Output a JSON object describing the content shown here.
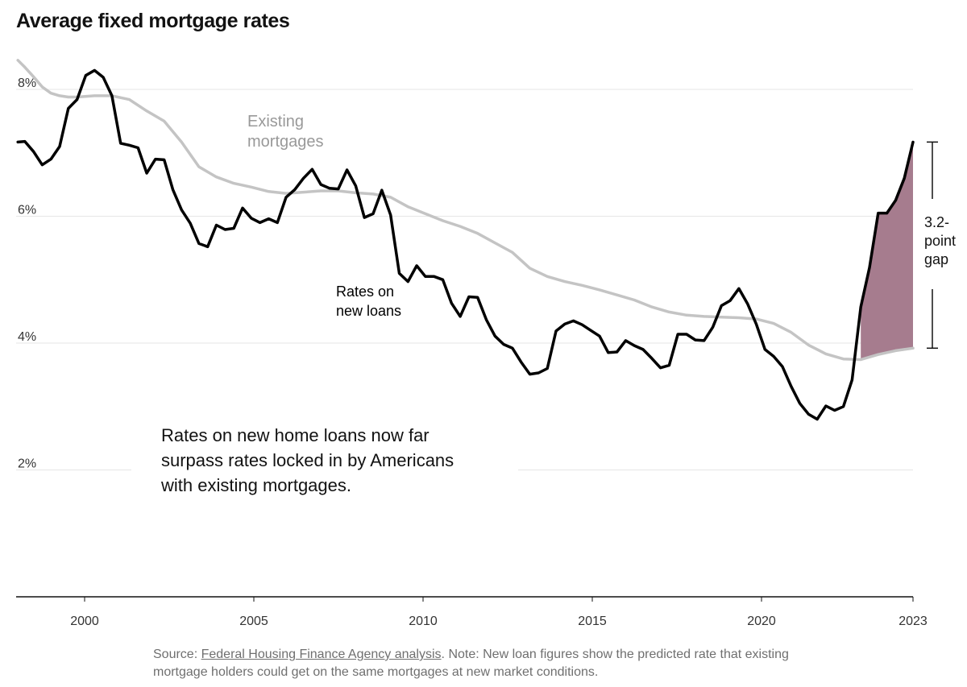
{
  "title": "Average fixed mortgage rates",
  "colors": {
    "new_loans": "#000000",
    "existing": "#c4c4c4",
    "gap_fill": "#a67c8e",
    "grid": "#e6e6e6",
    "axis": "#121212",
    "source_text": "#6f6f6f"
  },
  "source": {
    "prefix": "Source: ",
    "link_text": "Federal Housing Finance Agency analysis",
    "note": ". Note: New loan figures show the predicted rate that existing mortgage holders could get on the same mortgages at new market conditions."
  },
  "chart_data": {
    "type": "line",
    "title": "Average fixed mortgage rates",
    "xlabel": "",
    "ylabel": "",
    "xlim": [
      1999.25,
      2023.0
    ],
    "ylim": [
      0,
      8.5
    ],
    "x_ticks": [
      2000,
      2005,
      2010,
      2015,
      2020,
      2023
    ],
    "x_tick_labels": [
      "2000",
      "2005",
      "2010",
      "2015",
      "2020",
      "2023"
    ],
    "y_ticks": [
      2,
      4,
      6,
      8
    ],
    "y_tick_labels": [
      "2%",
      "4%",
      "6%",
      "8%"
    ],
    "grid": true,
    "legend": "direct labels on lines",
    "series": [
      {
        "name": "Rates on new loans",
        "label_lines": [
          "Rates on",
          "new loans"
        ],
        "points": [
          [
            1999.3,
            7.17
          ],
          [
            1999.5,
            7.18
          ],
          [
            1999.75,
            7.02
          ],
          [
            2000.0,
            6.81
          ],
          [
            2000.25,
            6.9
          ],
          [
            2000.5,
            7.1
          ],
          [
            2000.75,
            7.7
          ],
          [
            2001.0,
            7.84
          ],
          [
            2001.25,
            8.22
          ],
          [
            2001.5,
            8.3
          ],
          [
            2001.75,
            8.19
          ],
          [
            2002.0,
            7.9
          ],
          [
            2002.25,
            7.15
          ],
          [
            2002.5,
            7.12
          ],
          [
            2002.75,
            7.08
          ],
          [
            2003.0,
            6.68
          ],
          [
            2003.25,
            6.9
          ],
          [
            2003.5,
            6.89
          ],
          [
            2003.75,
            6.42
          ],
          [
            2004.0,
            6.1
          ],
          [
            2004.25,
            5.89
          ],
          [
            2004.5,
            5.57
          ],
          [
            2004.75,
            5.52
          ],
          [
            2005.0,
            5.86
          ],
          [
            2005.25,
            5.79
          ],
          [
            2005.5,
            5.81
          ],
          [
            2005.75,
            6.13
          ],
          [
            2006.0,
            5.97
          ],
          [
            2006.25,
            5.9
          ],
          [
            2006.5,
            5.96
          ],
          [
            2006.75,
            5.9
          ],
          [
            2007.0,
            6.3
          ],
          [
            2007.25,
            6.42
          ],
          [
            2007.5,
            6.6
          ],
          [
            2007.75,
            6.74
          ],
          [
            2008.0,
            6.5
          ],
          [
            2008.25,
            6.44
          ],
          [
            2008.5,
            6.43
          ],
          [
            2008.75,
            6.73
          ],
          [
            2009.0,
            6.48
          ],
          [
            2009.25,
            5.98
          ],
          [
            2009.5,
            6.04
          ],
          [
            2009.75,
            6.41
          ],
          [
            2010.0,
            6.02
          ],
          [
            2010.25,
            5.1
          ],
          [
            2010.5,
            4.97
          ],
          [
            2010.75,
            5.22
          ],
          [
            2011.0,
            5.05
          ],
          [
            2011.25,
            5.05
          ],
          [
            2011.5,
            5.0
          ],
          [
            2011.75,
            4.63
          ],
          [
            2012.0,
            4.42
          ],
          [
            2012.25,
            4.73
          ],
          [
            2012.5,
            4.72
          ],
          [
            2012.75,
            4.37
          ],
          [
            2013.0,
            4.11
          ],
          [
            2013.25,
            3.98
          ],
          [
            2013.5,
            3.92
          ],
          [
            2013.75,
            3.7
          ],
          [
            2014.0,
            3.51
          ],
          [
            2014.25,
            3.53
          ],
          [
            2014.5,
            3.6
          ],
          [
            2014.75,
            4.19
          ],
          [
            2015.0,
            4.3
          ],
          [
            2015.25,
            4.35
          ],
          [
            2015.5,
            4.29
          ],
          [
            2015.75,
            4.2
          ],
          [
            2016.0,
            4.11
          ],
          [
            2016.25,
            3.85
          ],
          [
            2016.5,
            3.86
          ],
          [
            2016.75,
            4.04
          ],
          [
            2017.0,
            3.96
          ],
          [
            2017.25,
            3.9
          ],
          [
            2017.5,
            3.76
          ],
          [
            2017.75,
            3.61
          ],
          [
            2018.0,
            3.65
          ],
          [
            2018.25,
            4.14
          ],
          [
            2018.5,
            4.14
          ],
          [
            2018.75,
            4.05
          ],
          [
            2019.0,
            4.04
          ],
          [
            2019.25,
            4.25
          ],
          [
            2019.5,
            4.59
          ],
          [
            2019.75,
            4.67
          ],
          [
            2020.0,
            4.86
          ],
          [
            2020.25,
            4.62
          ],
          [
            2020.5,
            4.3
          ],
          [
            2020.75,
            3.9
          ],
          [
            2021.0,
            3.79
          ],
          [
            2021.25,
            3.63
          ],
          [
            2021.5,
            3.32
          ],
          [
            2021.75,
            3.05
          ],
          [
            2022.0,
            2.88
          ],
          [
            2022.25,
            2.8
          ],
          [
            2022.5,
            3.01
          ],
          [
            2022.75,
            2.94
          ],
          [
            2023.0,
            3.0
          ],
          [
            2023.25,
            3.42
          ],
          [
            2023.5,
            4.57
          ],
          [
            2023.75,
            5.19
          ],
          [
            2024.0,
            6.05
          ],
          [
            2024.25,
            6.05
          ],
          [
            2024.5,
            6.25
          ],
          [
            2024.75,
            6.6
          ],
          [
            2025.0,
            7.17
          ]
        ]
      },
      {
        "name": "Existing mortgages",
        "label_lines": [
          "Existing",
          "mortgages"
        ],
        "points": [
          [
            1999.3,
            8.46
          ],
          [
            1999.5,
            8.35
          ],
          [
            1999.75,
            8.2
          ],
          [
            2000.0,
            8.04
          ],
          [
            2000.25,
            7.94
          ],
          [
            2000.5,
            7.9
          ],
          [
            2000.75,
            7.88
          ],
          [
            2001.0,
            7.88
          ],
          [
            2001.5,
            7.9
          ],
          [
            2002.0,
            7.9
          ],
          [
            2002.5,
            7.84
          ],
          [
            2003.0,
            7.66
          ],
          [
            2003.5,
            7.5
          ],
          [
            2004.0,
            7.17
          ],
          [
            2004.5,
            6.78
          ],
          [
            2005.0,
            6.62
          ],
          [
            2005.5,
            6.52
          ],
          [
            2006.0,
            6.46
          ],
          [
            2006.5,
            6.39
          ],
          [
            2007.0,
            6.36
          ],
          [
            2007.5,
            6.38
          ],
          [
            2008.0,
            6.4
          ],
          [
            2008.5,
            6.4
          ],
          [
            2009.0,
            6.37
          ],
          [
            2009.5,
            6.35
          ],
          [
            2010.0,
            6.3
          ],
          [
            2010.5,
            6.15
          ],
          [
            2011.0,
            6.04
          ],
          [
            2011.5,
            5.93
          ],
          [
            2012.0,
            5.84
          ],
          [
            2012.5,
            5.73
          ],
          [
            2013.0,
            5.58
          ],
          [
            2013.5,
            5.43
          ],
          [
            2014.0,
            5.18
          ],
          [
            2014.5,
            5.05
          ],
          [
            2015.0,
            4.97
          ],
          [
            2015.5,
            4.91
          ],
          [
            2016.0,
            4.84
          ],
          [
            2016.5,
            4.76
          ],
          [
            2017.0,
            4.68
          ],
          [
            2017.5,
            4.57
          ],
          [
            2018.0,
            4.49
          ],
          [
            2018.5,
            4.44
          ],
          [
            2019.0,
            4.42
          ],
          [
            2019.5,
            4.41
          ],
          [
            2020.0,
            4.4
          ],
          [
            2020.5,
            4.38
          ],
          [
            2021.0,
            4.31
          ],
          [
            2021.5,
            4.17
          ],
          [
            2022.0,
            3.97
          ],
          [
            2022.5,
            3.83
          ],
          [
            2023.0,
            3.75
          ],
          [
            2023.5,
            3.74
          ],
          [
            2024.0,
            3.82
          ],
          [
            2024.5,
            3.88
          ],
          [
            2025.0,
            3.92
          ]
        ]
      }
    ],
    "annotations": {
      "gap_lines": [
        "3.2-",
        "point",
        "gap"
      ],
      "gap_value": 3.2,
      "description_lines": [
        "Rates on new home loans now far",
        "surpass rates locked in by Americans",
        "with existing mortgages."
      ]
    }
  }
}
